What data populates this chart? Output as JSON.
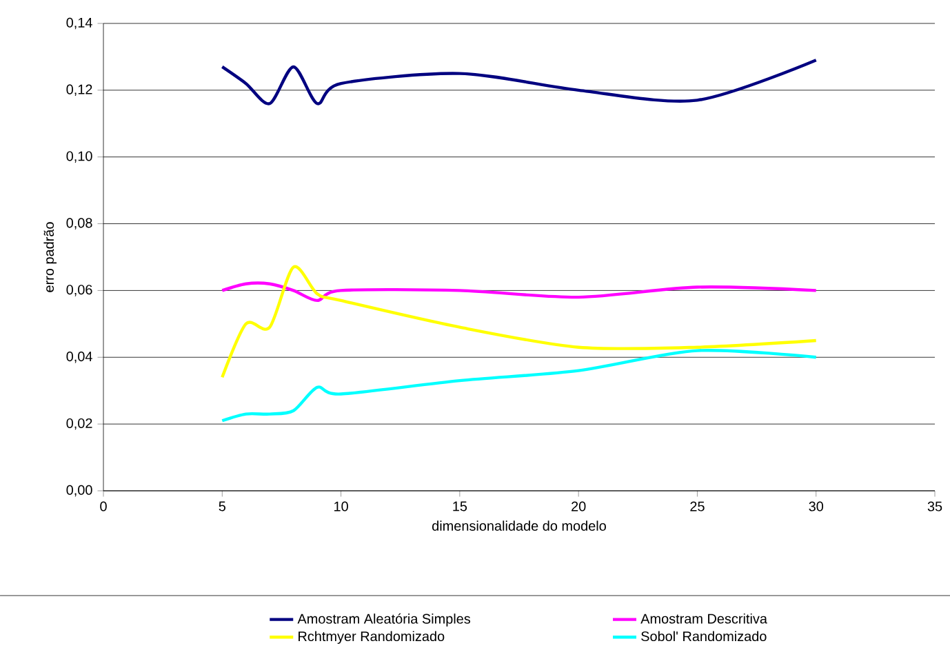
{
  "chart_data": {
    "type": "line",
    "xlabel": "dimensionalidade do modelo",
    "ylabel": "erro padrão",
    "x": [
      5,
      6,
      7,
      8,
      9,
      10,
      15,
      20,
      25,
      30
    ],
    "series": [
      {
        "name": "Amostram Aleatória Simples",
        "color": "#000080",
        "values": [
          0.127,
          0.122,
          0.116,
          0.127,
          0.116,
          0.122,
          0.125,
          0.12,
          0.117,
          0.129
        ]
      },
      {
        "name": "Amostram Descritiva",
        "color": "#ff00ff",
        "values": [
          0.06,
          0.062,
          0.062,
          0.06,
          0.057,
          0.06,
          0.06,
          0.058,
          0.061,
          0.06
        ]
      },
      {
        "name": "Rchtmyer Randomizado",
        "color": "#ffff00",
        "values": [
          0.034,
          0.05,
          0.049,
          0.067,
          0.059,
          0.057,
          0.049,
          0.043,
          0.043,
          0.045
        ]
      },
      {
        "name": "Sobol' Randomizado",
        "color": "#00ffff",
        "values": [
          0.021,
          0.023,
          0.023,
          0.024,
          0.031,
          0.029,
          0.033,
          0.036,
          0.042,
          0.04
        ]
      }
    ],
    "xlim": [
      0,
      35
    ],
    "xticks": [
      0,
      5,
      10,
      15,
      20,
      25,
      30,
      35
    ],
    "ylim": [
      0,
      0.14
    ],
    "yticks": [
      {
        "value": 0,
        "label": "0,00"
      },
      {
        "value": 0.02,
        "label": "0,02"
      },
      {
        "value": 0.04,
        "label": "0,04"
      },
      {
        "value": 0.06,
        "label": "0,06"
      },
      {
        "value": 0.08,
        "label": "0,08"
      },
      {
        "value": 0.1,
        "label": "0,10"
      },
      {
        "value": 0.12,
        "label": "0,12"
      },
      {
        "value": 0.14,
        "label": "0,14"
      }
    ],
    "grid": "y",
    "legend": "bottom",
    "marker": "none",
    "line_style": "solid"
  }
}
